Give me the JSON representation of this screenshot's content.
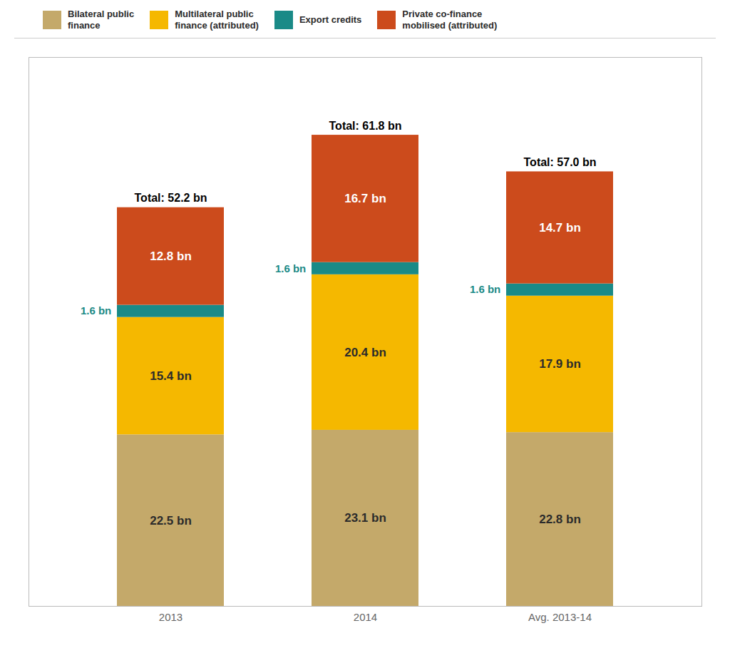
{
  "chart_data": {
    "type": "bar",
    "stacked": true,
    "categories": [
      "2013",
      "2014",
      "Avg. 2013-14"
    ],
    "series": [
      {
        "name": "Bilateral public\nfinance",
        "color": "#C4A96A",
        "values": [
          22.5,
          23.1,
          22.8
        ],
        "value_labels": [
          "22.5 bn",
          "23.1 bn",
          "22.8 bn"
        ]
      },
      {
        "name": "Multilateral public\nfinance (attributed)",
        "color": "#F5B800",
        "values": [
          15.4,
          20.4,
          17.9
        ],
        "value_labels": [
          "15.4 bn",
          "20.4 bn",
          "17.9 bn"
        ]
      },
      {
        "name": "Export credits",
        "color": "#1A8A87",
        "values": [
          1.6,
          1.6,
          1.6
        ],
        "value_labels": [
          "1.6 bn",
          "1.6 bn",
          "1.6 bn"
        ]
      },
      {
        "name": "Private co-finance\nmobilised (attributed)",
        "color": "#CC4B1C",
        "values": [
          12.8,
          16.7,
          14.7
        ],
        "value_labels": [
          "12.8 bn",
          "16.7 bn",
          "14.7 bn"
        ]
      }
    ],
    "annotations": [
      {
        "category": "2013",
        "text": "Total: 52.2 bn"
      },
      {
        "category": "2014",
        "text": "Total: 61.8 bn"
      },
      {
        "category": "Avg. 2013-14",
        "text": "Total: 57.0 bn"
      }
    ],
    "ylim": [
      0,
      72
    ],
    "data_labels": true,
    "tick_labels": "x",
    "grid": false,
    "legend": "upper left"
  }
}
